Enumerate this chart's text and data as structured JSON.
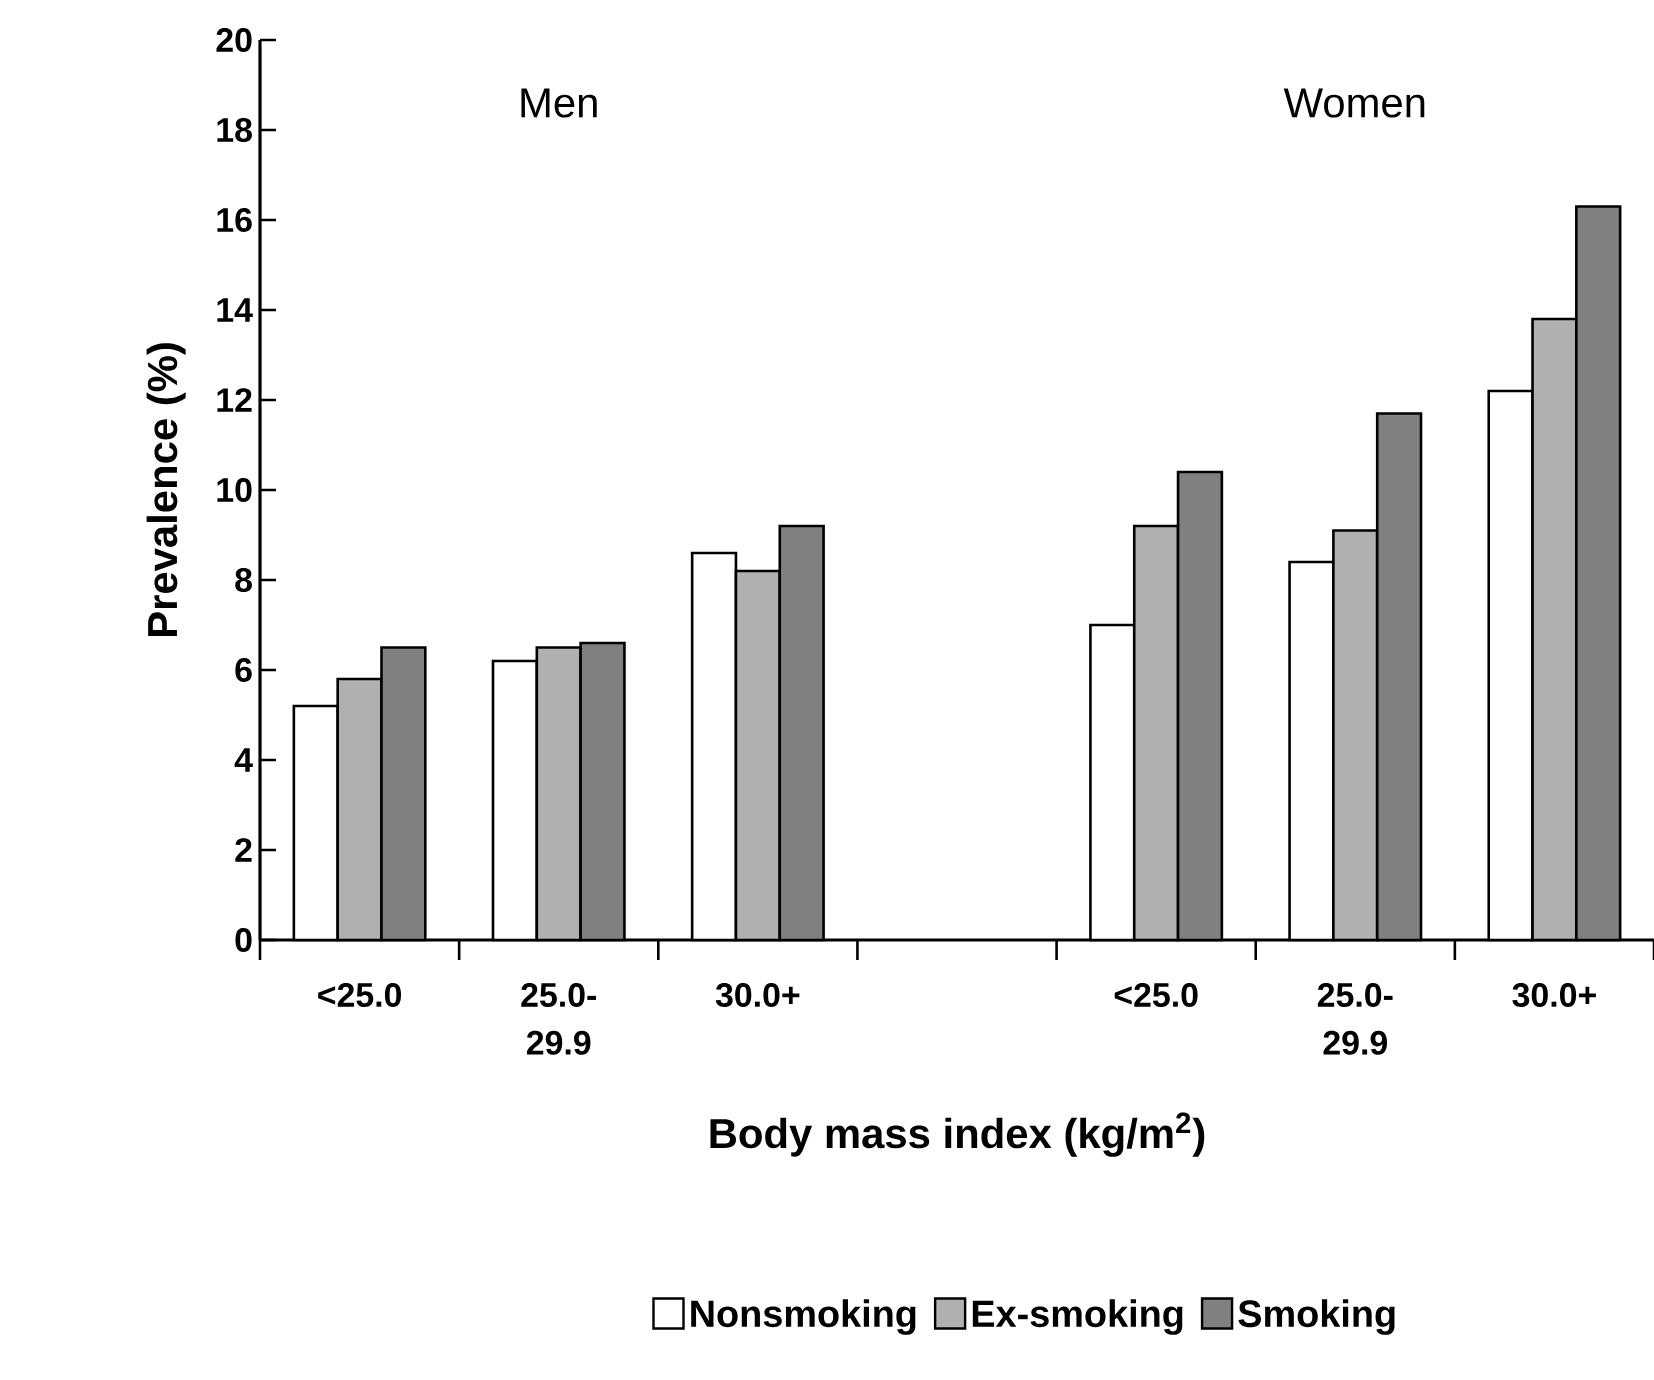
{
  "chart_data": {
    "type": "bar",
    "xlabel": "Body mass index (kg/m$^{2}$)",
    "ylabel": "Prevalence (%)",
    "annotations": [
      "Men",
      "Women"
    ],
    "categories": [
      "<25.0",
      "25.0-29.9",
      "30.0+",
      null,
      "<25.0",
      "25.0-29.9",
      "30.0+"
    ],
    "series": [
      {
        "name": "Nonsmoking",
        "color": "#ffffff",
        "values": [
          5.2,
          6.2,
          8.6,
          null,
          7.0,
          8.4,
          12.2
        ]
      },
      {
        "name": "Ex-smoking",
        "color": "#b0b0b0",
        "values": [
          5.8,
          6.5,
          8.2,
          null,
          9.2,
          9.1,
          13.8
        ]
      },
      {
        "name": "Smoking",
        "color": "#808080",
        "values": [
          6.5,
          6.6,
          9.2,
          null,
          10.4,
          11.7,
          16.3
        ]
      }
    ],
    "ylim": [
      0,
      20
    ],
    "yticks": [
      0,
      2,
      4,
      6,
      8,
      10,
      12,
      14,
      16,
      18,
      20
    ],
    "grid": false,
    "legend": "bottom"
  }
}
